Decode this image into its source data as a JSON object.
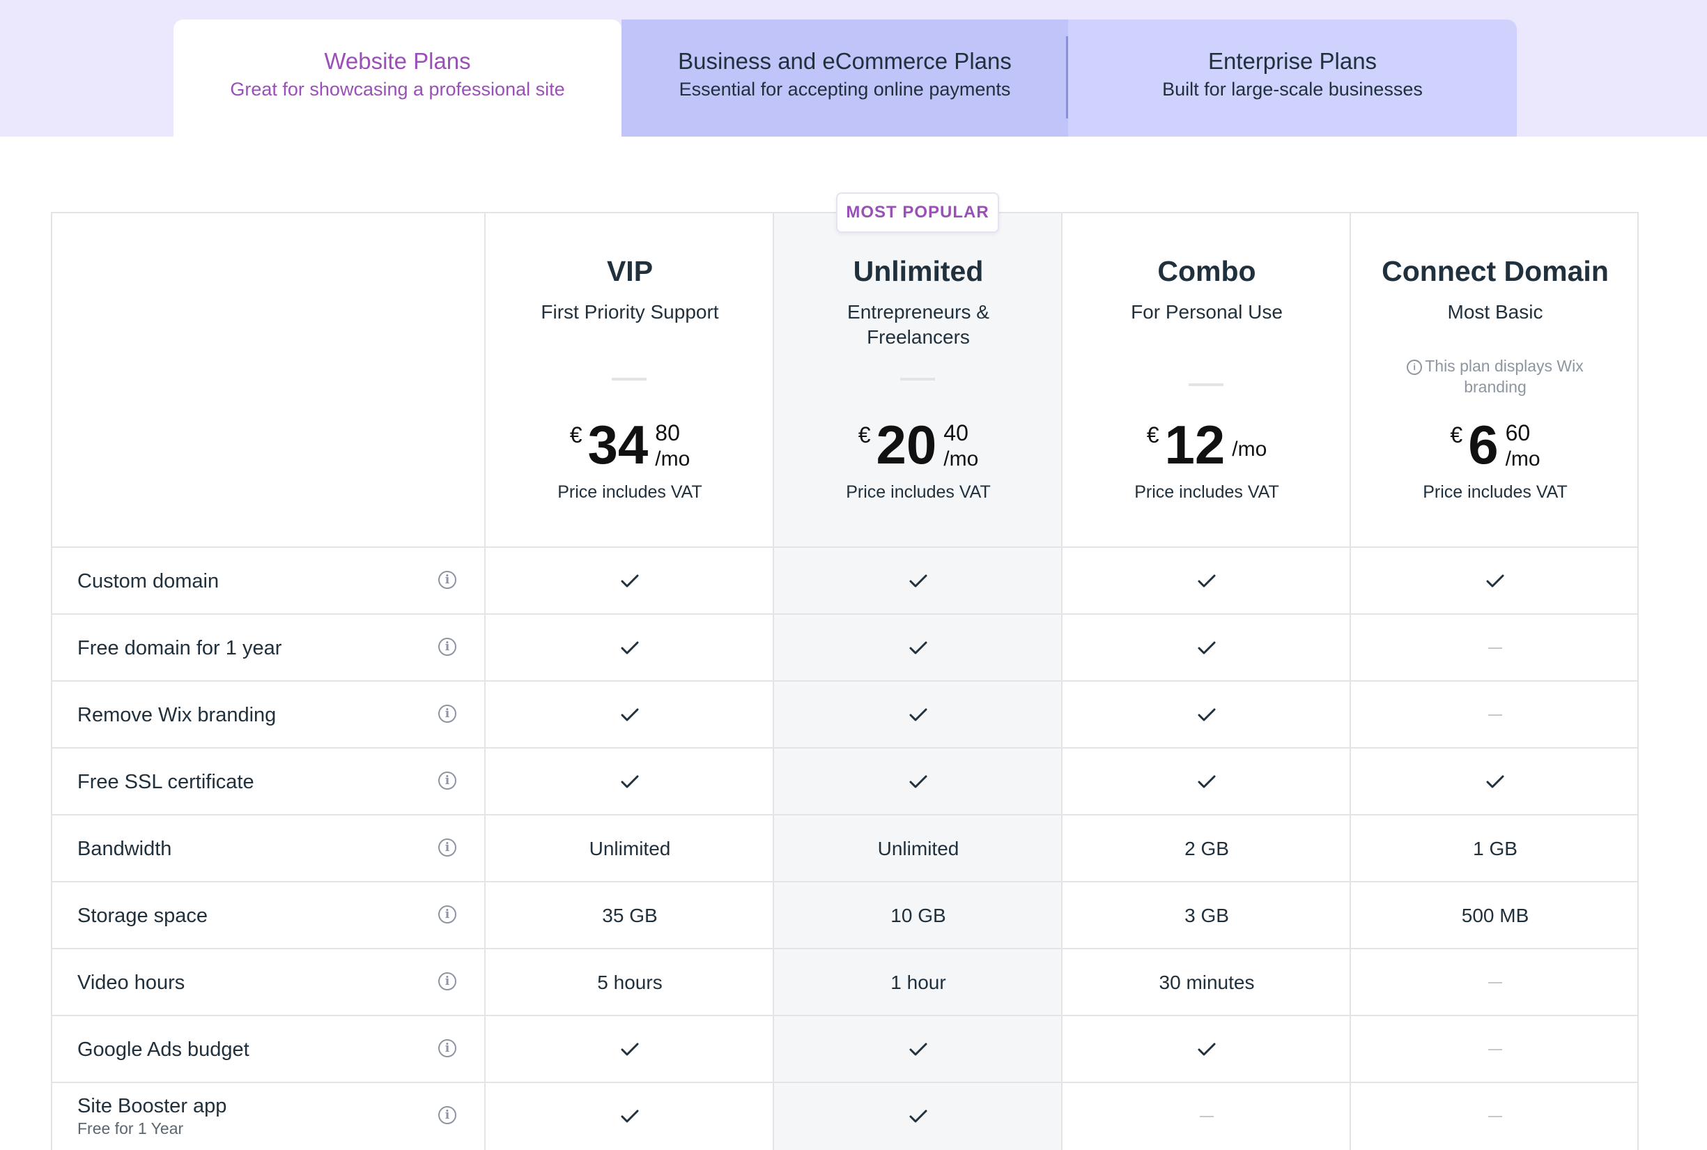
{
  "tabs": [
    {
      "title": "Website Plans",
      "subtitle": "Great for showcasing a professional site",
      "active": true
    },
    {
      "title": "Business and eCommerce Plans",
      "subtitle": "Essential for accepting online payments",
      "active": false
    },
    {
      "title": "Enterprise Plans",
      "subtitle": "Built for large-scale businesses",
      "active": false
    }
  ],
  "badge": "MOST POPULAR",
  "plans": [
    {
      "name": "VIP",
      "desc": "First Priority Support",
      "note": "",
      "currency": "€",
      "price_int": "34",
      "price_cents": "80",
      "per": "/mo",
      "vat": "Price includes VAT"
    },
    {
      "name": "Unlimited",
      "desc": "Entrepreneurs & Freelancers",
      "note": "",
      "currency": "€",
      "price_int": "20",
      "price_cents": "40",
      "per": "/mo",
      "vat": "Price includes VAT"
    },
    {
      "name": "Combo",
      "desc": "For Personal Use",
      "note": "",
      "currency": "€",
      "price_int": "12",
      "price_cents": "",
      "per": "/mo",
      "vat": "Price includes VAT"
    },
    {
      "name": "Connect Domain",
      "desc": "Most Basic",
      "note": "This plan displays Wix branding",
      "currency": "€",
      "price_int": "6",
      "price_cents": "60",
      "per": "/mo",
      "vat": "Price includes VAT"
    }
  ],
  "features": [
    {
      "label": "Custom domain",
      "sub": "",
      "values": [
        "check",
        "check",
        "check",
        "check"
      ]
    },
    {
      "label": "Free domain for 1 year",
      "sub": "",
      "values": [
        "check",
        "check",
        "check",
        "none"
      ]
    },
    {
      "label": "Remove Wix branding",
      "sub": "",
      "values": [
        "check",
        "check",
        "check",
        "none"
      ]
    },
    {
      "label": "Free SSL certificate",
      "sub": "",
      "values": [
        "check",
        "check",
        "check",
        "check"
      ]
    },
    {
      "label": "Bandwidth",
      "sub": "",
      "values": [
        "Unlimited",
        "Unlimited",
        "2 GB",
        "1 GB"
      ]
    },
    {
      "label": "Storage space",
      "sub": "",
      "values": [
        "35 GB",
        "10 GB",
        "3 GB",
        "500 MB"
      ]
    },
    {
      "label": "Video hours",
      "sub": "",
      "values": [
        "5 hours",
        "1 hour",
        "30 minutes",
        "none"
      ]
    },
    {
      "label": "Google Ads budget",
      "sub": "",
      "values": [
        "check",
        "check",
        "check",
        "none"
      ]
    },
    {
      "label": "Site Booster app",
      "sub": "Free for 1 Year",
      "values": [
        "check",
        "check",
        "none",
        "none"
      ]
    }
  ],
  "icons": {
    "info": "info-icon",
    "check": "checkmark-icon",
    "none": "dash-icon"
  },
  "colors": {
    "accent": "#9b4fb8",
    "tab_band": "#ebe8fd",
    "tab_business": "#c1c4f9",
    "tab_enterprise": "#cfd2fd"
  }
}
